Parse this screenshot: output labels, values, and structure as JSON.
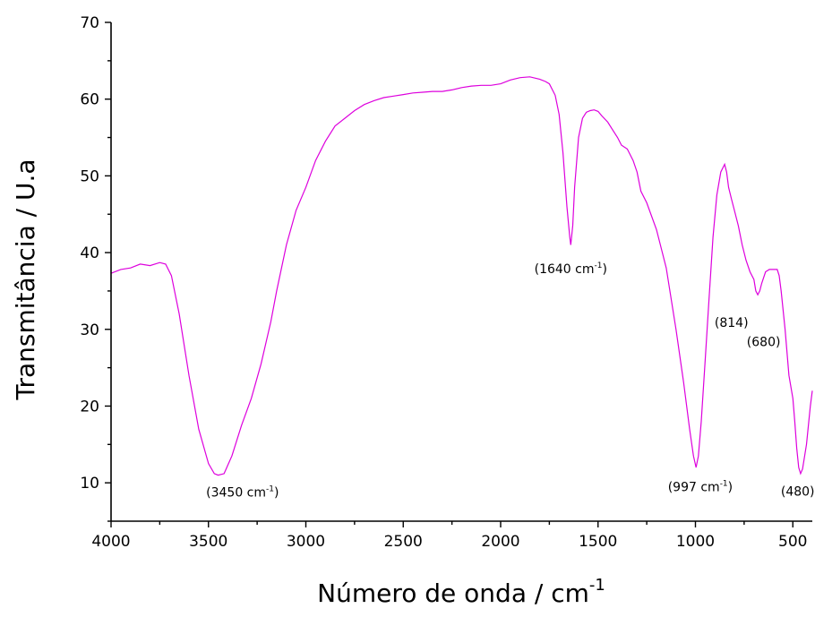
{
  "chart_data": {
    "type": "line",
    "title": "",
    "xlabel": "Número de onda / cm",
    "xlabel_sup": "-1",
    "ylabel": "Transmitância / U.a",
    "xlim": [
      4000,
      400
    ],
    "ylim": [
      5,
      70
    ],
    "x_reversed": true,
    "grid": false,
    "x_ticks": [
      4000,
      3500,
      3000,
      2500,
      2000,
      1500,
      1000,
      500
    ],
    "y_ticks": [
      10,
      20,
      30,
      40,
      50,
      60,
      70
    ],
    "series": [
      {
        "color": "#dd00dd",
        "x": [
          4000,
          3950,
          3900,
          3850,
          3800,
          3750,
          3720,
          3690,
          3650,
          3600,
          3550,
          3500,
          3470,
          3450,
          3420,
          3380,
          3330,
          3280,
          3230,
          3180,
          3150,
          3100,
          3050,
          3000,
          2950,
          2900,
          2850,
          2800,
          2750,
          2700,
          2650,
          2600,
          2550,
          2500,
          2450,
          2400,
          2350,
          2300,
          2250,
          2200,
          2150,
          2100,
          2050,
          2000,
          1950,
          1900,
          1850,
          1800,
          1770,
          1750,
          1720,
          1700,
          1680,
          1660,
          1645,
          1640,
          1630,
          1620,
          1600,
          1580,
          1560,
          1540,
          1520,
          1500,
          1480,
          1450,
          1420,
          1400,
          1380,
          1350,
          1320,
          1300,
          1280,
          1250,
          1200,
          1150,
          1100,
          1060,
          1030,
          1010,
          997,
          985,
          970,
          950,
          930,
          910,
          890,
          870,
          850,
          840,
          830,
          815,
          800,
          780,
          760,
          740,
          720,
          700,
          690,
          680,
          670,
          660,
          640,
          620,
          600,
          580,
          570,
          560,
          540,
          520,
          500,
          490,
          480,
          470,
          460,
          450,
          430,
          410,
          400
        ],
        "y": [
          37.3,
          37.8,
          38.0,
          38.5,
          38.3,
          38.7,
          38.5,
          37.0,
          32.0,
          24.0,
          17.0,
          12.5,
          11.2,
          11.0,
          11.2,
          13.5,
          17.5,
          21.0,
          25.5,
          31.0,
          35.0,
          41.0,
          45.5,
          48.5,
          52.0,
          54.5,
          56.5,
          57.5,
          58.5,
          59.3,
          59.8,
          60.2,
          60.4,
          60.6,
          60.8,
          60.9,
          61.0,
          61.0,
          61.2,
          61.5,
          61.7,
          61.8,
          61.8,
          62.0,
          62.5,
          62.8,
          62.9,
          62.6,
          62.3,
          62.0,
          60.5,
          58.0,
          53.0,
          46.0,
          42.0,
          41.0,
          43.5,
          48.5,
          55.0,
          57.5,
          58.3,
          58.5,
          58.6,
          58.4,
          57.8,
          57.0,
          55.8,
          55.0,
          54.0,
          53.5,
          52.0,
          50.5,
          48.0,
          46.5,
          43.0,
          38.0,
          30.0,
          23.0,
          17.0,
          13.5,
          12.0,
          13.5,
          18.0,
          26.0,
          34.0,
          42.0,
          47.5,
          50.5,
          51.5,
          50.5,
          48.5,
          47.0,
          45.5,
          43.5,
          41.0,
          39.0,
          37.5,
          36.5,
          35.0,
          34.5,
          35.0,
          36.0,
          37.5,
          37.8,
          37.8,
          37.8,
          37.0,
          35.0,
          30.0,
          24.0,
          21.0,
          18.0,
          14.5,
          12.0,
          11.2,
          11.8,
          15.0,
          20.0,
          22.0
        ]
      }
    ],
    "annotations": [
      {
        "text": "(3450 cm",
        "sup": "-1",
        "close": ")",
        "x": 3325,
        "y": 8.2
      },
      {
        "text": "(1640 cm",
        "sup": "-1",
        "close": ")",
        "x": 1640,
        "y": 37.3
      },
      {
        "text": "(997 cm",
        "sup": "-1",
        "close": ")",
        "x": 975,
        "y": 8.9
      },
      {
        "text": "(814)",
        "sup": "",
        "close": "",
        "x": 815,
        "y": 30.3
      },
      {
        "text": "(680)",
        "sup": "",
        "close": "",
        "x": 650,
        "y": 27.8
      },
      {
        "text": "(480)",
        "sup": "",
        "close": "",
        "x": 475,
        "y": 8.3
      }
    ]
  }
}
